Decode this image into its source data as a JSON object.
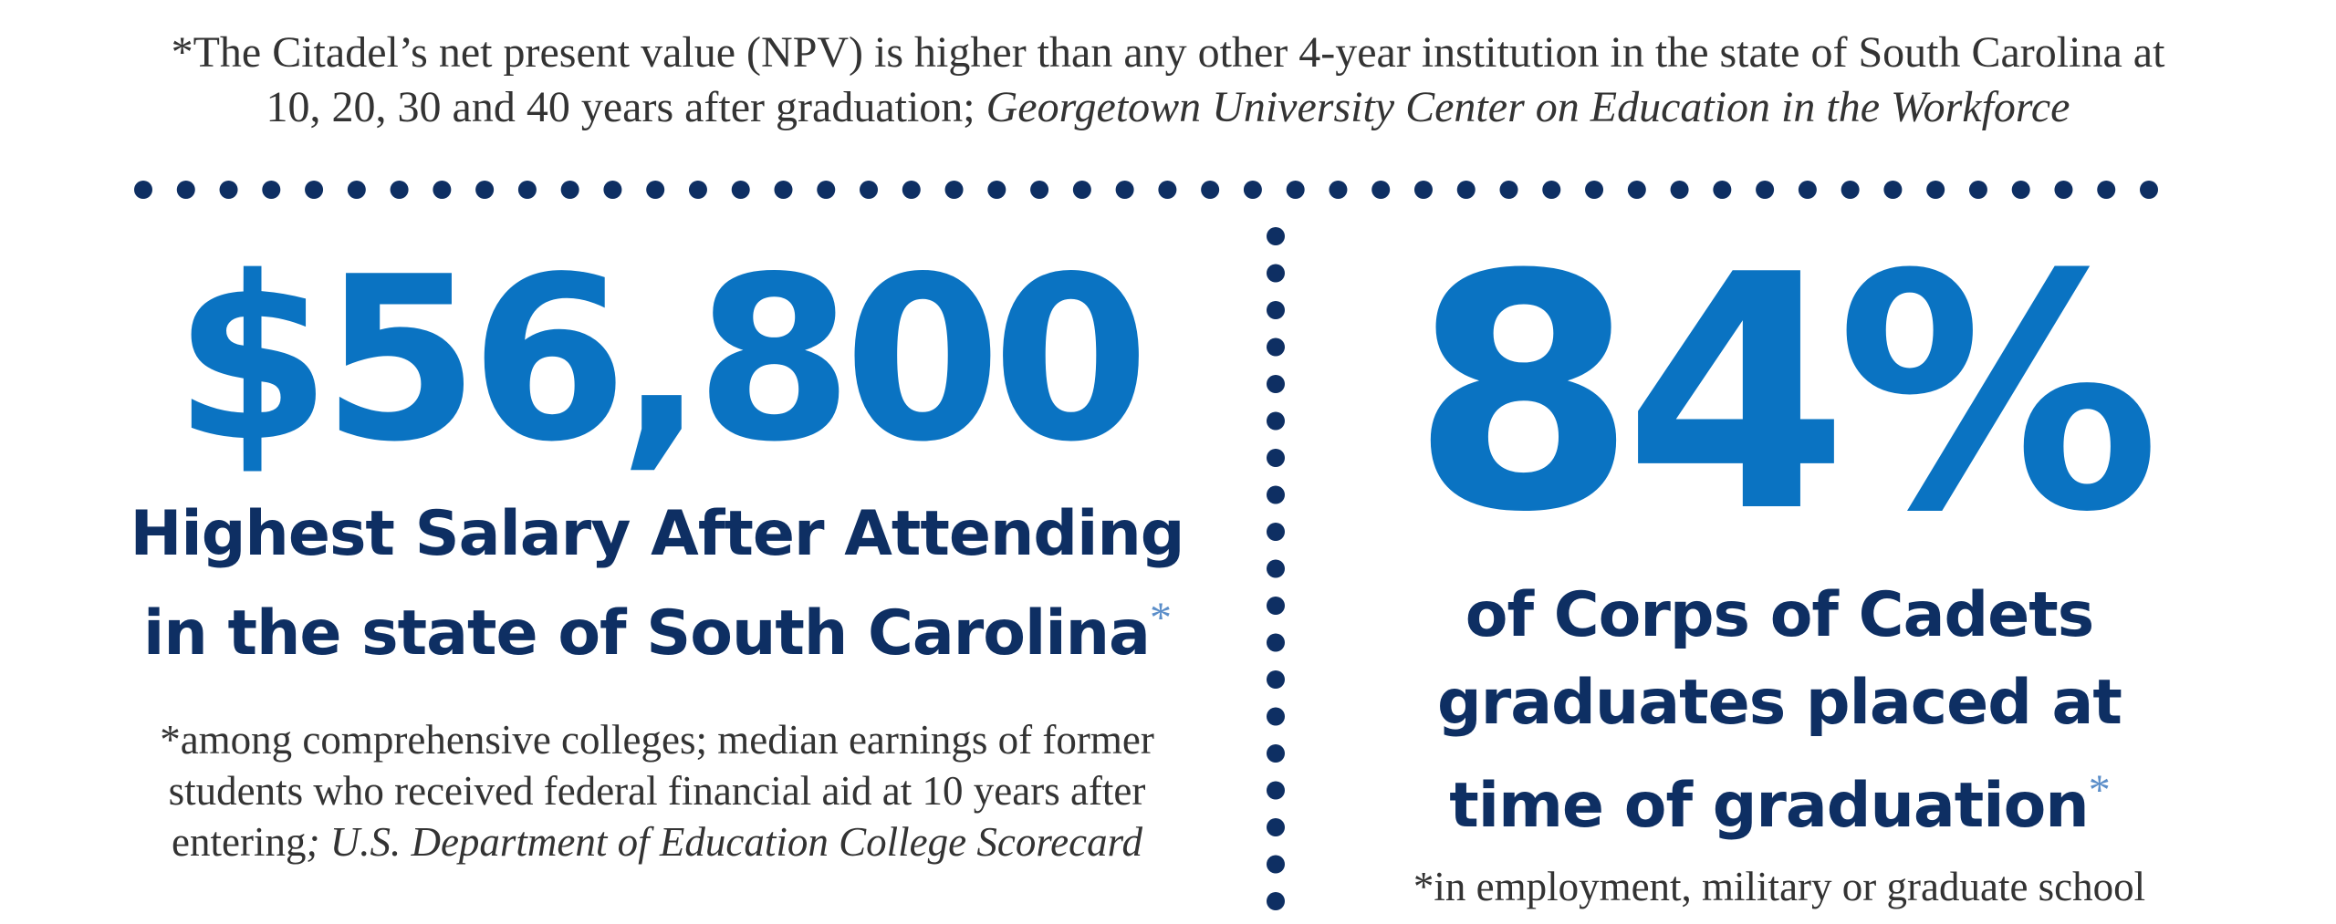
{
  "colors": {
    "accent_blue": "#0a73c2",
    "navy": "#0e2f63",
    "body_text": "#333333",
    "dots": "#0e2f63"
  },
  "top_note": {
    "line1": "*The Citadel’s net present value (NPV) is higher than any other 4-year institution in the state of South Carolina at",
    "line2_text": "10, 20, 30 and 40 years after graduation; ",
    "line2_source": "Georgetown University Center on Education in the Workforce"
  },
  "salary": {
    "value": "$56,800",
    "title_line1": "Highest Salary After Attending",
    "title_line2": "in the state of South Carolina",
    "asterisk": "*",
    "note_line1": "*among comprehensive colleges; median earnings of former",
    "note_line2": "students who received federal financial aid at 10 years after",
    "note_line3_text": "entering",
    "note_line3_source": "; U.S. Department of Education College Scorecard"
  },
  "placement": {
    "value": "84%",
    "title_line1": "of Corps of Cadets",
    "title_line2": "graduates placed at",
    "title_line3": "time of graduation",
    "asterisk": "*",
    "note": "*in employment, military or graduate school"
  }
}
